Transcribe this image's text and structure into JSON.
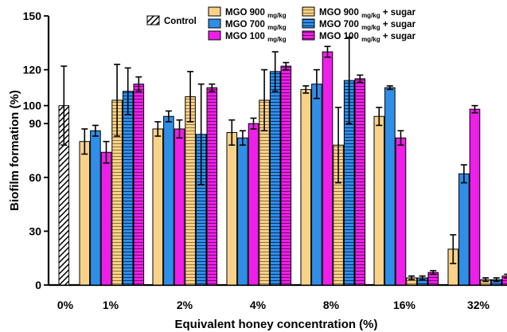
{
  "chart_data": {
    "type": "bar",
    "xlabel": "Equivalent honey concentration (%)",
    "ylabel": "Biofilm formation (%)",
    "ylim": [
      0,
      150
    ],
    "yticks": [
      0,
      30,
      60,
      90,
      100,
      120,
      150
    ],
    "grid": false,
    "legend_position": "top",
    "categories": [
      "0%",
      "1%",
      "2%",
      "4%",
      "8%",
      "16%",
      "32%"
    ],
    "control": {
      "name": "Control",
      "category": "0%",
      "value": 100,
      "error": 22,
      "fill": "#ffffff",
      "pattern": "diagonal-hatch"
    },
    "series": [
      {
        "name": "MGO 900",
        "sub": "mg/kg",
        "suffix": "",
        "color": "#f9d28a",
        "pattern": "solid",
        "values": [
          null,
          80,
          87,
          85,
          109,
          94,
          20
        ],
        "errors": [
          null,
          7,
          4,
          7,
          2,
          5,
          8
        ]
      },
      {
        "name": "MGO 700",
        "sub": "mg/kg",
        "suffix": "",
        "color": "#2f8fe8",
        "pattern": "solid",
        "values": [
          null,
          86,
          94,
          82,
          112,
          110,
          62
        ],
        "errors": [
          null,
          3,
          3,
          4,
          8,
          1,
          5
        ]
      },
      {
        "name": "MGO 100",
        "sub": "mg/kg",
        "suffix": "",
        "color": "#ee1fe8",
        "pattern": "solid",
        "values": [
          null,
          74,
          87,
          90,
          130,
          82,
          98
        ],
        "errors": [
          null,
          6,
          5,
          3,
          3,
          4,
          2
        ]
      },
      {
        "name": "MGO 900",
        "sub": "mg/kg",
        "suffix": " + sugar",
        "color": "#f9d28a",
        "pattern": "horizontal-stripes",
        "values": [
          null,
          103,
          105,
          103,
          78,
          4,
          3
        ],
        "errors": [
          null,
          20,
          14,
          17,
          21,
          1,
          1
        ]
      },
      {
        "name": "MGO 700",
        "sub": "mg/kg",
        "suffix": " + sugar",
        "color": "#2f8fe8",
        "pattern": "horizontal-stripes",
        "values": [
          null,
          108,
          84,
          119,
          114,
          4,
          3
        ],
        "errors": [
          null,
          13,
          28,
          11,
          24,
          1,
          1
        ]
      },
      {
        "name": "MGO 100",
        "sub": "mg/kg",
        "suffix": " + sugar",
        "color": "#ee1fe8",
        "pattern": "horizontal-stripes",
        "values": [
          null,
          112,
          110,
          122,
          115,
          7,
          5
        ],
        "errors": [
          null,
          4,
          2,
          2,
          2,
          1,
          1
        ]
      }
    ]
  }
}
